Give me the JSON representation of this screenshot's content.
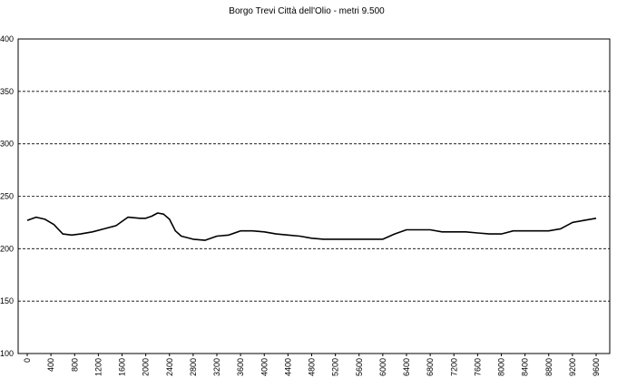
{
  "chart_data": {
    "type": "line",
    "title": "Borgo Trevi Città dell'Olio - metri 9.500",
    "xlabel": "",
    "ylabel": "",
    "xlim": [
      0,
      9500
    ],
    "ylim": [
      100,
      400
    ],
    "yticks": [
      "100",
      "150",
      "200",
      "250",
      "300",
      "350",
      "400"
    ],
    "xticks": [
      "0",
      "400",
      "800",
      "1200",
      "1600",
      "2000",
      "2400",
      "2800",
      "3200",
      "3600",
      "4000",
      "4400",
      "4800",
      "5200",
      "5600",
      "6000",
      "6400",
      "6800",
      "7200",
      "7600",
      "8000",
      "8400",
      "8800",
      "9200",
      "9600"
    ],
    "grid": true,
    "legend": "none",
    "line_color": "#000000",
    "series": [
      {
        "x": [
          0,
          150,
          300,
          450,
          600,
          750,
          900,
          1100,
          1300,
          1500,
          1700,
          1900,
          2000,
          2100,
          2200,
          2300,
          2400,
          2500,
          2600,
          2800,
          3000,
          3200,
          3400,
          3600,
          3800,
          4000,
          4200,
          4400,
          4600,
          4800,
          5000,
          5200,
          5400,
          5600,
          5800,
          6000,
          6200,
          6400,
          6600,
          6800,
          7000,
          7200,
          7400,
          7600,
          7800,
          8000,
          8200,
          8400,
          8600,
          8800,
          9000,
          9200,
          9400,
          9600
        ],
        "y": [
          227,
          230,
          228,
          223,
          214,
          213,
          214,
          216,
          219,
          222,
          230,
          229,
          229,
          231,
          234,
          233,
          228,
          217,
          212,
          209,
          208,
          212,
          213,
          217,
          217,
          216,
          214,
          213,
          212,
          210,
          209,
          209,
          209,
          209,
          209,
          209,
          214,
          218,
          218,
          218,
          216,
          216,
          216,
          215,
          214,
          214,
          217,
          217,
          217,
          217,
          219,
          225,
          227,
          229
        ]
      }
    ]
  }
}
